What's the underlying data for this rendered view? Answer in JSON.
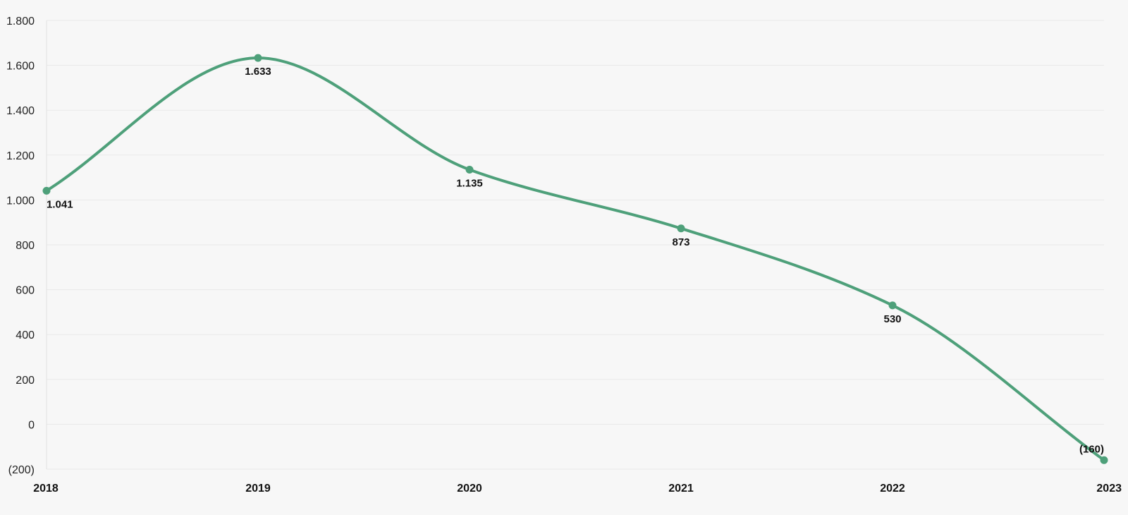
{
  "chart_data": {
    "type": "line",
    "title": "",
    "xlabel": "",
    "ylabel": "",
    "categories": [
      "2018",
      "2019",
      "2020",
      "2021",
      "2022",
      "2023"
    ],
    "series": [
      {
        "values": [
          1041,
          1633,
          1135,
          873,
          530,
          -160
        ],
        "labels": [
          "1.041",
          "1.633",
          "1.135",
          "873",
          "530",
          "(160)"
        ]
      }
    ],
    "ylim": [
      -200,
      1800
    ],
    "y_ticks": [
      {
        "value": 1800,
        "label": "1.800"
      },
      {
        "value": 1600,
        "label": "1.600"
      },
      {
        "value": 1400,
        "label": "1.400"
      },
      {
        "value": 1200,
        "label": "1.200"
      },
      {
        "value": 1000,
        "label": "1.000"
      },
      {
        "value": 800,
        "label": "800"
      },
      {
        "value": 600,
        "label": "600"
      },
      {
        "value": 400,
        "label": "400"
      },
      {
        "value": 200,
        "label": "200"
      },
      {
        "value": 0,
        "label": "0"
      },
      {
        "value": -200,
        "label": "(200)"
      }
    ],
    "grid": true,
    "legend": "none",
    "line_color": "#4ea07a",
    "smooth": true
  }
}
